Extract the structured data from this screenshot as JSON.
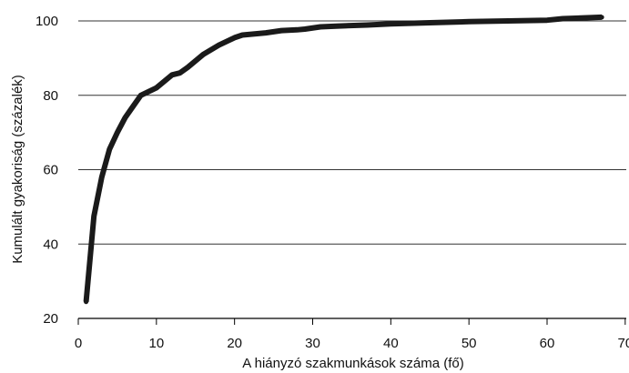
{
  "chart_data": {
    "type": "line",
    "title": "",
    "xlabel": "A hiányzó szakmunkások száma (fő)",
    "ylabel": "Kumulált gyakoriság (százalék)",
    "xlim": [
      0,
      70
    ],
    "ylim": [
      20,
      100
    ],
    "xticks": [
      0,
      10,
      20,
      30,
      40,
      50,
      60,
      70
    ],
    "yticks": [
      20,
      40,
      60,
      80,
      100
    ],
    "xtick_labels": [
      "0",
      "10",
      "20",
      "30",
      "40",
      "50",
      "60",
      "70"
    ],
    "ytick_labels": [
      "20",
      "40",
      "60",
      "80",
      "100"
    ],
    "grid": "horizontal",
    "colors": {
      "line": "#1a1a1a",
      "grid": "#333333",
      "axis": "#000000"
    },
    "series": [
      {
        "x": [
          1,
          2,
          3,
          4,
          5,
          6,
          7,
          8,
          10,
          12,
          13,
          14,
          16,
          18,
          20,
          21,
          24,
          26,
          28,
          29,
          31,
          33,
          37,
          40,
          45,
          50,
          55,
          60,
          62,
          67
        ],
        "y": [
          24.5,
          47.5,
          58,
          65.5,
          70,
          74,
          77,
          80,
          82,
          85.5,
          86,
          87.5,
          91,
          93.5,
          95.5,
          96.2,
          96.8,
          97.4,
          97.6,
          97.8,
          98.4,
          98.6,
          98.9,
          99.2,
          99.5,
          99.8,
          100,
          100.2,
          100.6,
          101
        ]
      }
    ]
  }
}
